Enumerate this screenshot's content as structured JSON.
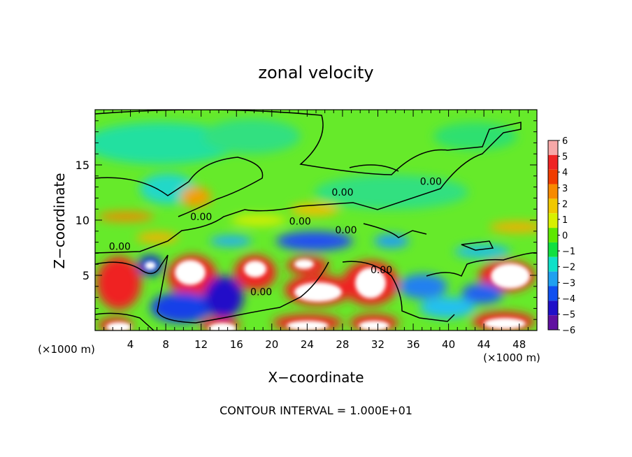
{
  "chart_data": {
    "type": "heatmap",
    "title": "zonal velocity",
    "xlabel": "X−coordinate",
    "ylabel": "Z−coordinate",
    "x_unit": "(×1000 m)",
    "z_unit": "(×1000 m)",
    "xlim": [
      0,
      50
    ],
    "ylim": [
      0,
      20
    ],
    "x_ticks": [
      4,
      8,
      12,
      16,
      20,
      24,
      28,
      32,
      36,
      40,
      44,
      48
    ],
    "y_ticks": [
      5,
      10,
      15
    ],
    "colorbar": {
      "levels": [
        6,
        5,
        4,
        3,
        2,
        1,
        0,
        -1,
        -2,
        -3,
        -4,
        -5,
        -6
      ],
      "tick_labels": [
        "6",
        "5",
        "4",
        "3",
        "2",
        "1",
        "0",
        "−1",
        "−2",
        "−3",
        "−4",
        "−5",
        "−6"
      ],
      "colors": [
        "#f7a8a8",
        "#ef2424",
        "#f03c00",
        "#f78a00",
        "#f0c800",
        "#d8f000",
        "#5ee800",
        "#10e040",
        "#10e0c8",
        "#20a0f0",
        "#1050f0",
        "#2010c8",
        "#6010a0"
      ]
    },
    "contour_labels": [
      {
        "text": "0.00",
        "x": 2.8,
        "z": 7.3
      },
      {
        "text": "0.00",
        "x": 12.0,
        "z": 10.0
      },
      {
        "text": "0.00",
        "x": 23.2,
        "z": 9.6
      },
      {
        "text": "0.00",
        "x": 28.0,
        "z": 12.2
      },
      {
        "text": "0.00",
        "x": 28.4,
        "z": 8.8
      },
      {
        "text": "0.00",
        "x": 18.8,
        "z": 3.2
      },
      {
        "text": "0.00",
        "x": 32.4,
        "z": 5.2
      },
      {
        "text": "0.00",
        "x": 38.0,
        "z": 13.2
      }
    ],
    "footnote": "CONTOUR INTERVAL = 1.000E+01"
  }
}
